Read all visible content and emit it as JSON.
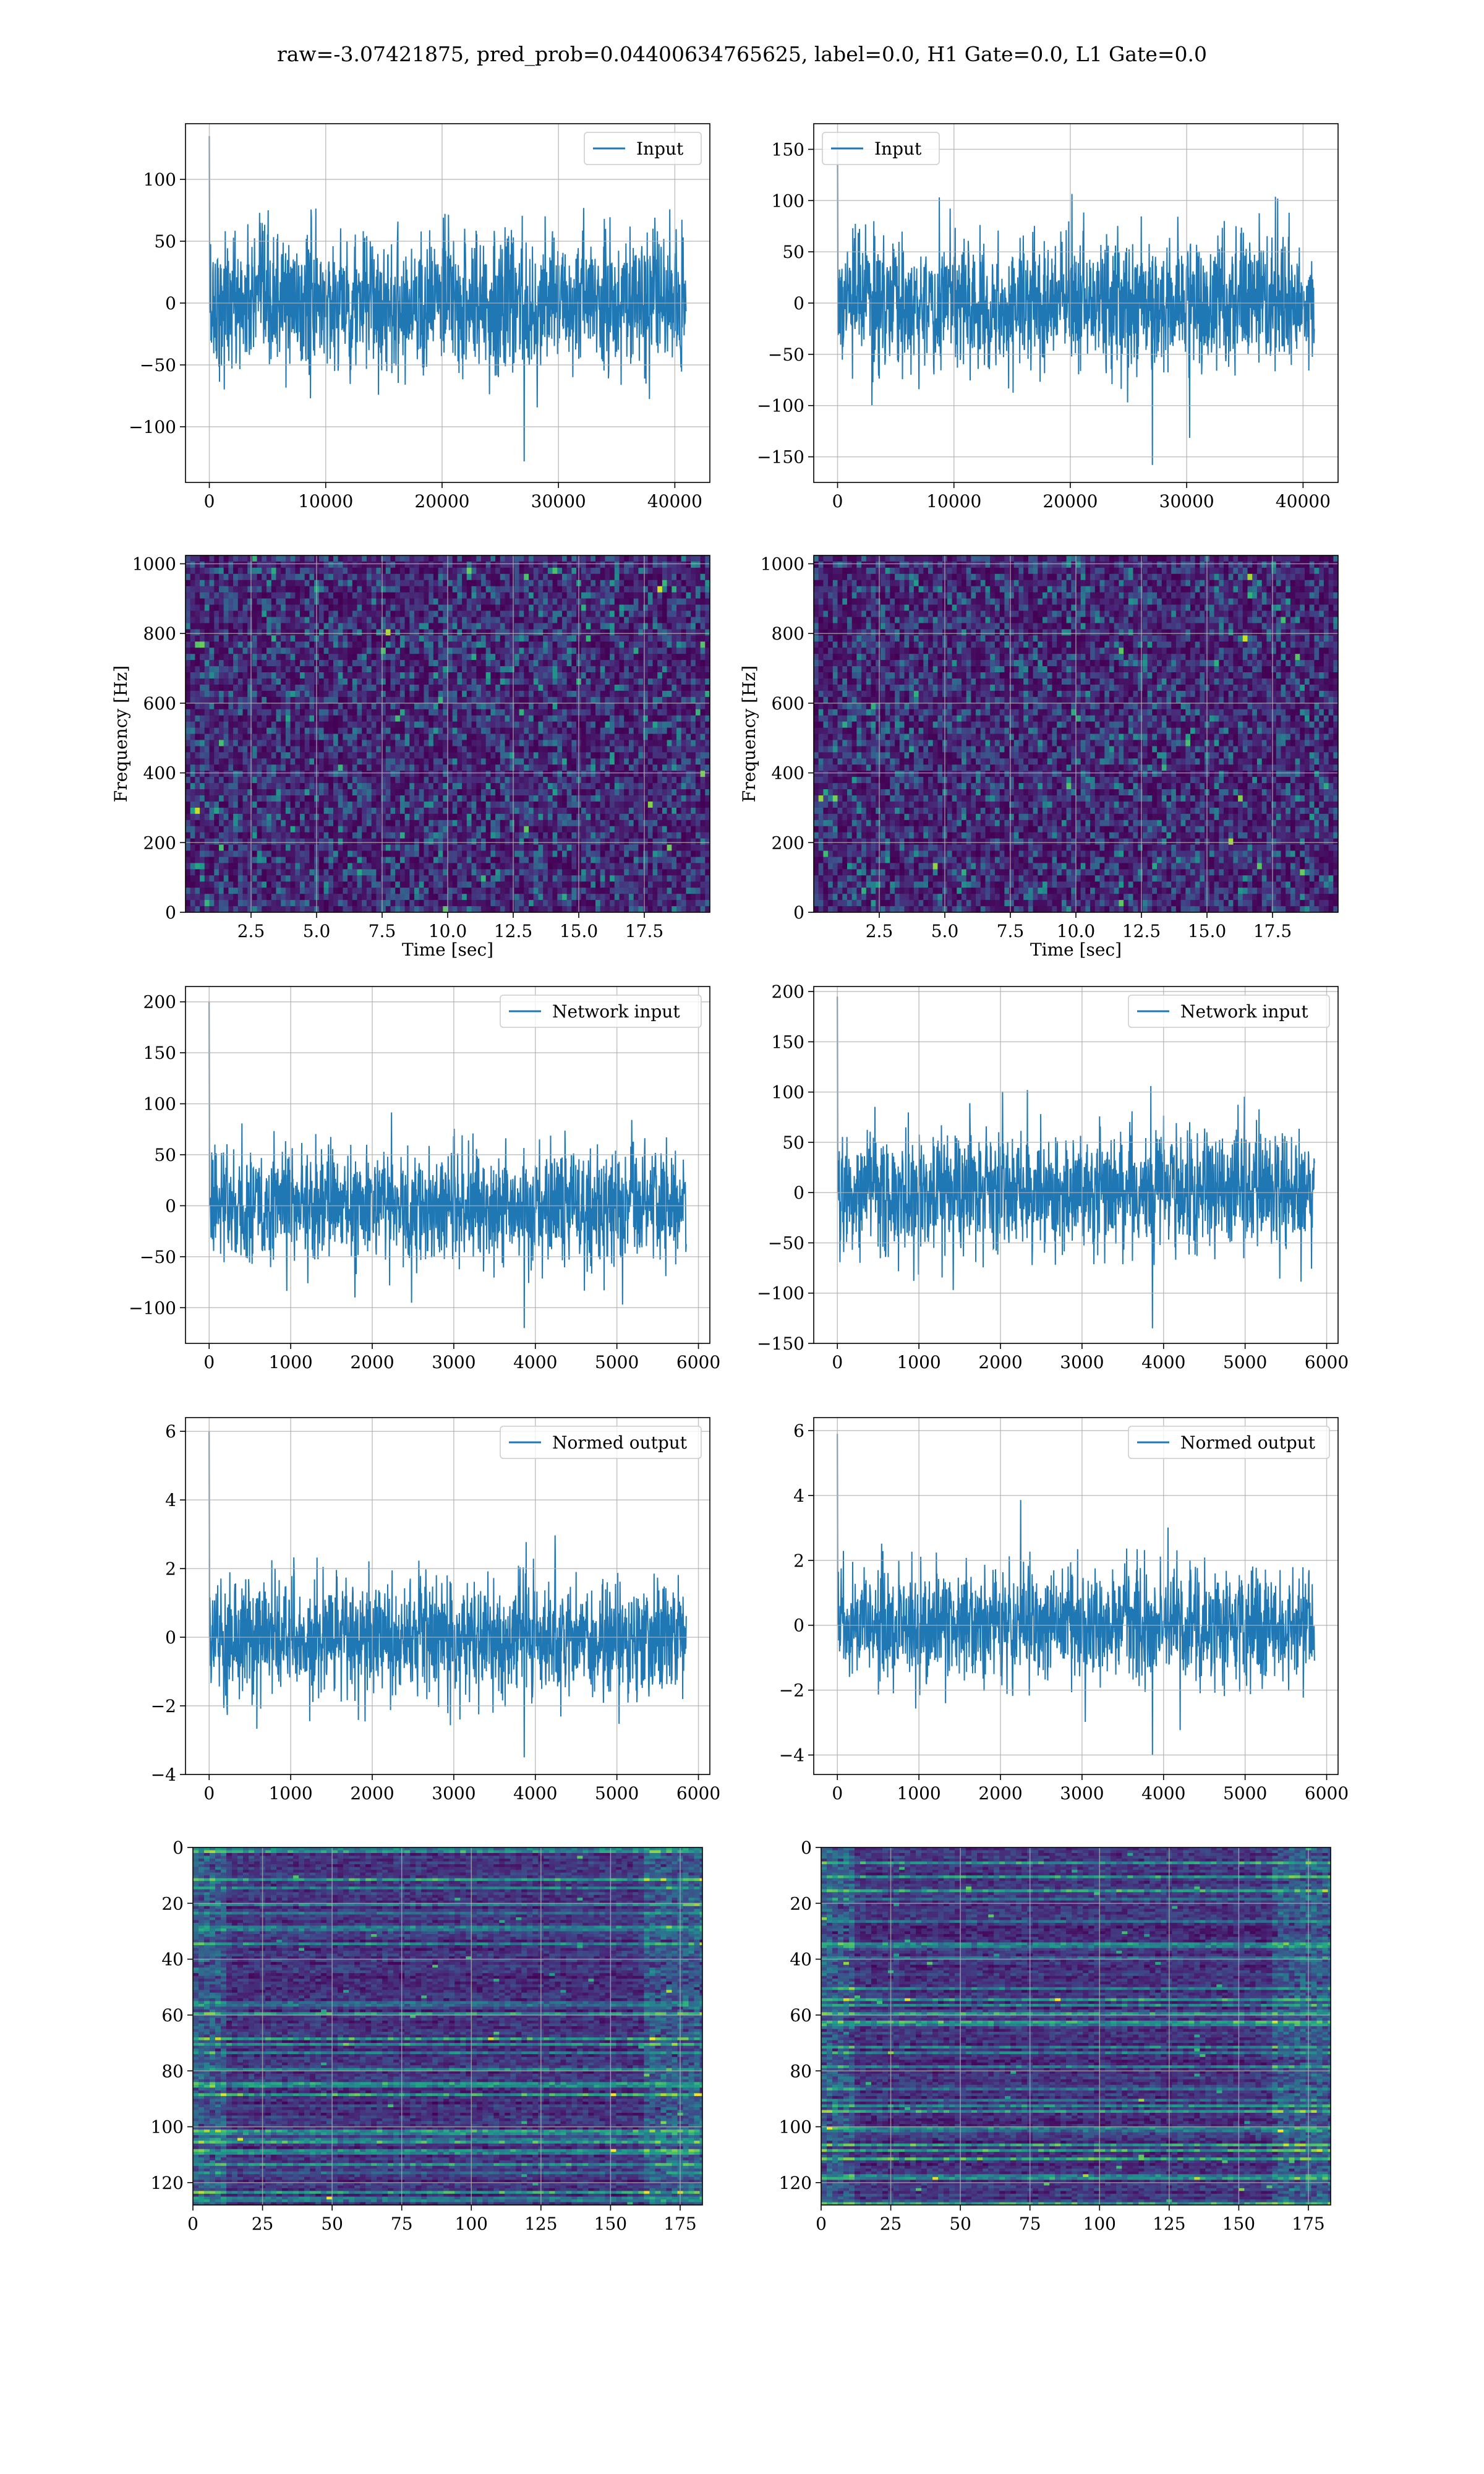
{
  "suptitle": "raw=-3.07421875, pred_prob=0.04400634765625, label=0.0, H1 Gate=0.0, L1 Gate=0.0",
  "colors": {
    "line": "#1f77b4",
    "grid": "#b0b0b0",
    "axes": "#000000",
    "viridis_low": "#440154"
  },
  "chart_data": [
    {
      "id": "input-h1",
      "type": "line",
      "series": [
        {
          "name": "Input",
          "x_range": [
            0,
            40960
          ],
          "amplitude_std": 28,
          "extremes": {
            "max": 135,
            "min": -128
          }
        }
      ],
      "xlabel": "",
      "ylabel": "",
      "xlim": [
        -2048,
        43008
      ],
      "ylim": [
        -145,
        145
      ],
      "xticks": [
        0,
        10000,
        20000,
        30000,
        40000
      ],
      "yticks": [
        -100,
        -50,
        0,
        50,
        100
      ],
      "legend": "upper right",
      "grid": true
    },
    {
      "id": "input-l1",
      "type": "line",
      "series": [
        {
          "name": "Input",
          "x_range": [
            0,
            40960
          ],
          "amplitude_std": 32,
          "extremes": {
            "max": 158,
            "min": -158
          }
        }
      ],
      "xlabel": "",
      "ylabel": "",
      "xlim": [
        -2048,
        43008
      ],
      "ylim": [
        -175,
        175
      ],
      "xticks": [
        0,
        10000,
        20000,
        30000,
        40000
      ],
      "yticks": [
        -150,
        -100,
        -50,
        0,
        50,
        100,
        150
      ],
      "legend": "upper left",
      "grid": true
    },
    {
      "id": "spectrogram-h1",
      "type": "heatmap",
      "colormap": "viridis",
      "xlabel": "Time [sec]",
      "ylabel": "Frequency [Hz]",
      "xlim": [
        0,
        20
      ],
      "ylim": [
        0,
        1024
      ],
      "xticks": [
        2.5,
        5.0,
        7.5,
        10.0,
        12.5,
        15.0,
        17.5
      ],
      "yticks": [
        0,
        200,
        400,
        600,
        800,
        1000
      ],
      "grid": true
    },
    {
      "id": "spectrogram-l1",
      "type": "heatmap",
      "colormap": "viridis",
      "xlabel": "Time [sec]",
      "ylabel": "Frequency [Hz]",
      "xlim": [
        0,
        20
      ],
      "ylim": [
        0,
        1024
      ],
      "xticks": [
        2.5,
        5.0,
        7.5,
        10.0,
        12.5,
        15.0,
        17.5
      ],
      "yticks": [
        0,
        200,
        400,
        600,
        800,
        1000
      ],
      "grid": true
    },
    {
      "id": "network-input-h1",
      "type": "line",
      "series": [
        {
          "name": "Network input",
          "x_range": [
            0,
            5850
          ],
          "amplitude_std": 28,
          "extremes": {
            "max": 200,
            "min": -120
          }
        }
      ],
      "xlabel": "",
      "ylabel": "",
      "xlim": [
        -290,
        6140
      ],
      "ylim": [
        -135,
        215
      ],
      "xticks": [
        0,
        1000,
        2000,
        3000,
        4000,
        5000,
        6000
      ],
      "yticks": [
        -100,
        -50,
        0,
        50,
        100,
        150,
        200
      ],
      "legend": "upper right",
      "grid": true
    },
    {
      "id": "network-input-l1",
      "type": "line",
      "series": [
        {
          "name": "Network input",
          "x_range": [
            0,
            5850
          ],
          "amplitude_std": 30,
          "extremes": {
            "max": 195,
            "min": -135
          }
        }
      ],
      "xlabel": "",
      "ylabel": "",
      "xlim": [
        -290,
        6140
      ],
      "ylim": [
        -150,
        205
      ],
      "xticks": [
        0,
        1000,
        2000,
        3000,
        4000,
        5000,
        6000
      ],
      "yticks": [
        -150,
        -100,
        -50,
        0,
        50,
        100,
        150,
        200
      ],
      "legend": "upper right",
      "grid": true
    },
    {
      "id": "normed-output-h1",
      "type": "line",
      "series": [
        {
          "name": "Normed output",
          "x_range": [
            0,
            5850
          ],
          "amplitude_std": 0.85,
          "extremes": {
            "max": 6.0,
            "min": -3.5
          }
        }
      ],
      "xlabel": "",
      "ylabel": "",
      "xlim": [
        -290,
        6140
      ],
      "ylim": [
        -4,
        6.4
      ],
      "xticks": [
        0,
        1000,
        2000,
        3000,
        4000,
        5000,
        6000
      ],
      "yticks": [
        -4,
        -2,
        0,
        2,
        4,
        6
      ],
      "legend": "upper right",
      "grid": true
    },
    {
      "id": "normed-output-l1",
      "type": "line",
      "series": [
        {
          "name": "Normed output",
          "x_range": [
            0,
            5850
          ],
          "amplitude_std": 0.85,
          "extremes": {
            "max": 5.9,
            "min": -4.0
          }
        }
      ],
      "xlabel": "",
      "ylabel": "",
      "xlim": [
        -290,
        6140
      ],
      "ylim": [
        -4.6,
        6.4
      ],
      "xticks": [
        0,
        1000,
        2000,
        3000,
        4000,
        5000,
        6000
      ],
      "yticks": [
        -4,
        -2,
        0,
        2,
        4,
        6
      ],
      "legend": "upper right",
      "grid": true
    },
    {
      "id": "feature-map-h1",
      "type": "heatmap",
      "colormap": "viridis",
      "orientation": "image (row 0 at top)",
      "xlabel": "",
      "ylabel": "",
      "xlim": [
        0,
        183
      ],
      "ylim": [
        128,
        0
      ],
      "xticks": [
        0,
        25,
        50,
        75,
        100,
        125,
        150,
        175
      ],
      "yticks": [
        0,
        20,
        40,
        60,
        80,
        100,
        120
      ],
      "grid": true
    },
    {
      "id": "feature-map-l1",
      "type": "heatmap",
      "colormap": "viridis",
      "orientation": "image (row 0 at top)",
      "xlabel": "",
      "ylabel": "",
      "xlim": [
        0,
        183
      ],
      "ylim": [
        128,
        0
      ],
      "xticks": [
        0,
        25,
        50,
        75,
        100,
        125,
        150,
        175
      ],
      "yticks": [
        0,
        20,
        40,
        60,
        80,
        100,
        120
      ],
      "grid": true
    }
  ]
}
